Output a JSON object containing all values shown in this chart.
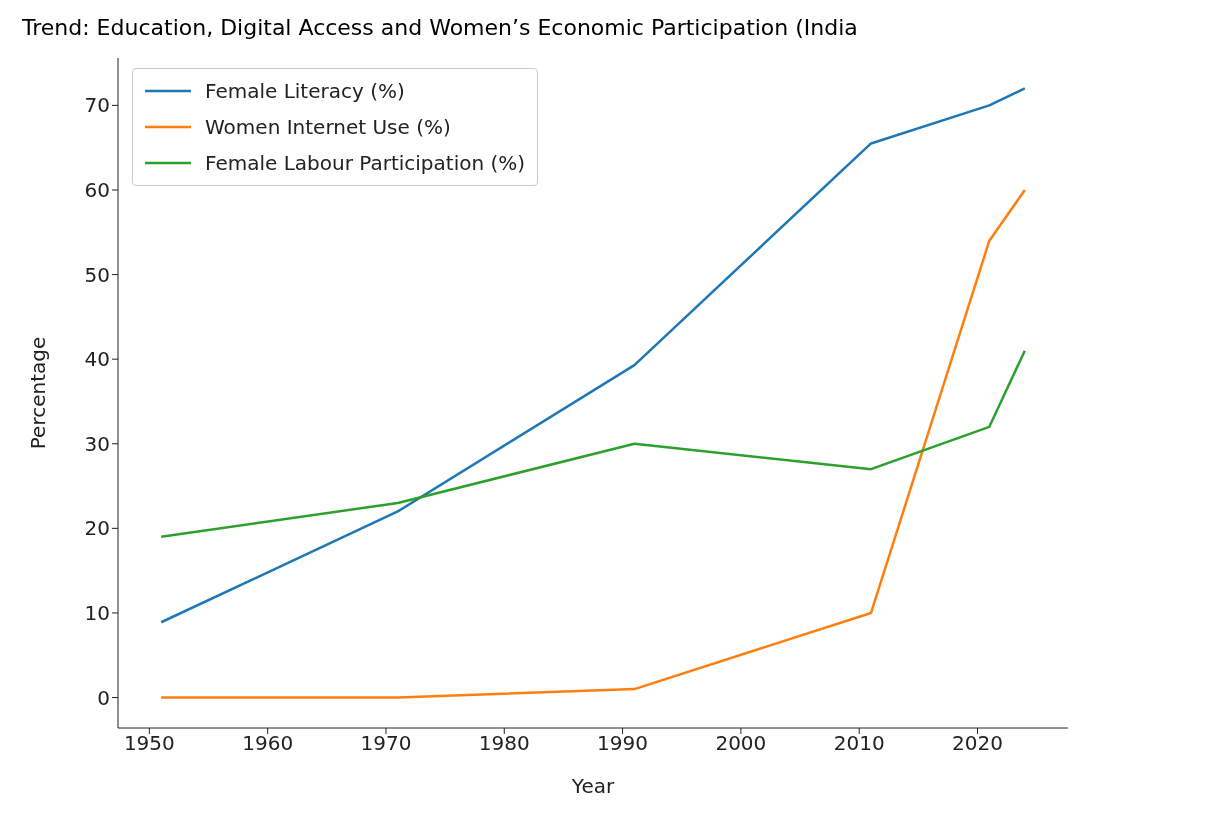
{
  "chart_data": {
    "type": "line",
    "title": "Trend: Education, Digital Access and Women’s Economic Participation (India",
    "xlabel": "Year",
    "ylabel": "Percentage",
    "x": [
      1951,
      1971,
      1991,
      2011,
      2021,
      2024
    ],
    "series": [
      {
        "name": "Female Literacy (%)",
        "color": "#1f77b4",
        "values": [
          8.9,
          22,
          39.3,
          65.5,
          70,
          72
        ]
      },
      {
        "name": "Women Internet Use (%)",
        "color": "#ff7f0e",
        "values": [
          0,
          0,
          1,
          10,
          54,
          60
        ]
      },
      {
        "name": "Female Labour Participation (%)",
        "color": "#2ca02c",
        "values": [
          19,
          23,
          30,
          27,
          32,
          41
        ]
      }
    ],
    "xlim": [
      1947.35,
      2027.65
    ],
    "xticks": [
      1950,
      1960,
      1970,
      1980,
      1990,
      2000,
      2010,
      2020
    ],
    "ylim": [
      -3.6,
      75.6
    ],
    "yticks": [
      0,
      10,
      20,
      30,
      40,
      50,
      60,
      70
    ],
    "legend": "top left",
    "marker": "none",
    "line_style": "solid"
  }
}
